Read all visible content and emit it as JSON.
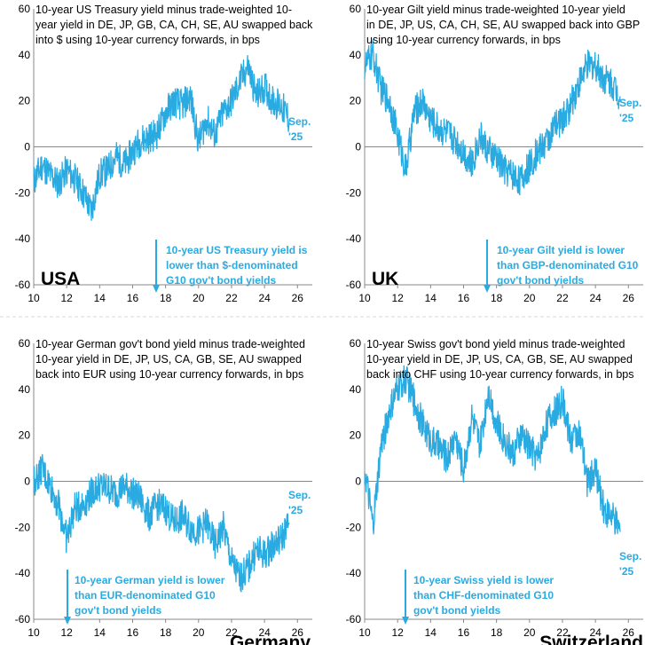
{
  "accent_color": "#29abe2",
  "arrow_color": "#29abe2",
  "chart_data": [
    {
      "type": "line",
      "country": "USA",
      "title": "10-year US Treasury yield minus trade-weighted 10-year yield in DE, JP, GB, CA, CH, SE, AU swapped back into $ using 10-year currency forwards, in bps",
      "title_lines": [
        "10-year US Treasury yield minus trade-weighted 10-",
        "year yield in DE, JP, GB, CA, CH, SE, AU swapped back",
        "into $ using 10-year currency forwards, in bps"
      ],
      "end_label": [
        "Sep.",
        "'25"
      ],
      "annotation": [
        "10-year US Treasury yield is",
        "lower than $-denominated",
        "G10 gov't bond yields"
      ],
      "xlim": [
        10,
        26.9
      ],
      "ylim": [
        -60,
        60
      ],
      "xticks": [
        "10",
        "12",
        "14",
        "16",
        "18",
        "20",
        "22",
        "24",
        "26"
      ],
      "yticks": [
        "-60",
        "-40",
        "-20",
        "0",
        "20",
        "40",
        "60"
      ],
      "series": [
        {
          "x": [
            10,
            10.5,
            11,
            11.5,
            12,
            12.5,
            13,
            13.5,
            14,
            14.5,
            15,
            15.5,
            16,
            16.5,
            17,
            17.5,
            18,
            18.5,
            19,
            19.5,
            20,
            20.5,
            21,
            21.5,
            22,
            22.5,
            23,
            23.5,
            24,
            24.5,
            25,
            25.5
          ],
          "y": [
            -15,
            -8,
            -12,
            -16,
            -10,
            -14,
            -20,
            -28,
            -12,
            -10,
            -4,
            -8,
            -2,
            3,
            4,
            6,
            15,
            20,
            18,
            22,
            2,
            12,
            5,
            15,
            20,
            28,
            35,
            22,
            26,
            20,
            18,
            12
          ]
        }
      ]
    },
    {
      "type": "line",
      "country": "UK",
      "title": "10-year Gilt yield minus trade-weighted 10-year yield in DE, JP, US, CA, CH, SE, AU swapped back into GBP using 10-year currency forwards, in bps",
      "title_lines": [
        "10-year Gilt yield minus trade-weighted 10-year yield",
        "in DE, JP, US, CA, CH, SE, AU swapped back into GBP",
        "using 10-year currency forwards, in bps"
      ],
      "end_label": [
        "Sep.",
        "'25"
      ],
      "annotation": [
        "10-year Gilt yield is lower",
        "than GBP-denominated G10",
        "gov't bond yields"
      ],
      "xlim": [
        10,
        26.9
      ],
      "ylim": [
        -60,
        60
      ],
      "xticks": [
        "10",
        "12",
        "14",
        "16",
        "18",
        "20",
        "22",
        "24",
        "26"
      ],
      "yticks": [
        "-60",
        "-40",
        "-20",
        "0",
        "20",
        "40",
        "60"
      ],
      "series": [
        {
          "x": [
            10,
            10.5,
            11,
            11.5,
            12,
            12.5,
            13,
            13.5,
            14,
            14.5,
            15,
            15.5,
            16,
            16.5,
            17,
            17.5,
            18,
            18.5,
            19,
            19.5,
            20,
            20.5,
            21,
            21.5,
            22,
            22.5,
            23,
            23.5,
            24,
            24.5,
            25,
            25.5
          ],
          "y": [
            35,
            40,
            25,
            20,
            5,
            -10,
            15,
            20,
            12,
            8,
            6,
            3,
            -2,
            -8,
            5,
            -2,
            -5,
            -10,
            -12,
            -15,
            -8,
            -2,
            2,
            8,
            12,
            18,
            28,
            35,
            36,
            30,
            28,
            22
          ]
        }
      ]
    },
    {
      "type": "line",
      "country": "Germany",
      "title": "10-year German gov't bond yield minus trade-weighted 10-year yield in DE, JP, US, CA, GB, SE, AU swapped back into EUR using 10-year currency forwards, in bps",
      "title_lines": [
        "10-year German gov't bond yield minus trade-weighted",
        "10-year yield in DE, JP, US, CA, GB, SE, AU swapped",
        "back into EUR using 10-year currency forwards, in bps"
      ],
      "end_label": [
        "Sep.",
        "'25"
      ],
      "annotation": [
        "10-year German yield is lower",
        "than EUR-denominated G10",
        "gov't bond yields"
      ],
      "xlim": [
        10,
        26.9
      ],
      "ylim": [
        -60,
        60
      ],
      "xticks": [
        "10",
        "12",
        "14",
        "16",
        "18",
        "20",
        "22",
        "24",
        "26"
      ],
      "yticks": [
        "-60",
        "-40",
        "-20",
        "0",
        "20",
        "40",
        "60"
      ],
      "series": [
        {
          "x": [
            10,
            10.5,
            11,
            11.5,
            12,
            12.5,
            13,
            13.5,
            14,
            14.5,
            15,
            15.5,
            16,
            16.5,
            17,
            17.5,
            18,
            18.5,
            19,
            19.5,
            20,
            20.5,
            21,
            21.5,
            22,
            22.5,
            23,
            23.5,
            24,
            24.5,
            25,
            25.5
          ],
          "y": [
            0,
            5,
            -2,
            -10,
            -25,
            -12,
            -10,
            -5,
            -2,
            -3,
            -5,
            -2,
            -5,
            -8,
            -15,
            -10,
            -12,
            -18,
            -15,
            -20,
            -22,
            -18,
            -28,
            -20,
            -35,
            -42,
            -38,
            -30,
            -32,
            -28,
            -25,
            -18
          ]
        }
      ]
    },
    {
      "type": "line",
      "country": "Switzerland",
      "title": "10-year Swiss gov't bond yield minus trade-weighted 10-year yield in DE, JP, US, CA, GB, SE, AU swapped back into CHF using 10-year currency forwards, in bps",
      "title_lines": [
        "10-year Swiss gov't bond yield minus trade-weighted",
        "10-year yield in DE, JP, US, CA, GB, SE, AU swapped",
        "back into CHF using 10-year currency forwards, in bps"
      ],
      "end_label": [
        "Sep.",
        "'25"
      ],
      "annotation": [
        "10-year Swiss yield is lower",
        "than CHF-denominated G10",
        "gov't bond yields"
      ],
      "xlim": [
        10,
        26.9
      ],
      "ylim": [
        -60,
        60
      ],
      "xticks": [
        "10",
        "12",
        "14",
        "16",
        "18",
        "20",
        "22",
        "24",
        "26"
      ],
      "yticks": [
        "-60",
        "-40",
        "-20",
        "0",
        "20",
        "40",
        "60"
      ],
      "series": [
        {
          "x": [
            10,
            10.5,
            11,
            11.5,
            12,
            12.5,
            13,
            13.5,
            14,
            14.5,
            15,
            15.5,
            16,
            16.5,
            17,
            17.5,
            18,
            18.5,
            19,
            19.5,
            20,
            20.5,
            21,
            21.5,
            22,
            22.5,
            23,
            23.5,
            24,
            24.5,
            25,
            25.5
          ],
          "y": [
            5,
            -20,
            15,
            30,
            40,
            45,
            35,
            25,
            18,
            15,
            10,
            20,
            5,
            28,
            15,
            40,
            25,
            18,
            12,
            20,
            15,
            10,
            25,
            30,
            35,
            18,
            22,
            0,
            5,
            -12,
            -15,
            -22
          ]
        }
      ]
    }
  ]
}
